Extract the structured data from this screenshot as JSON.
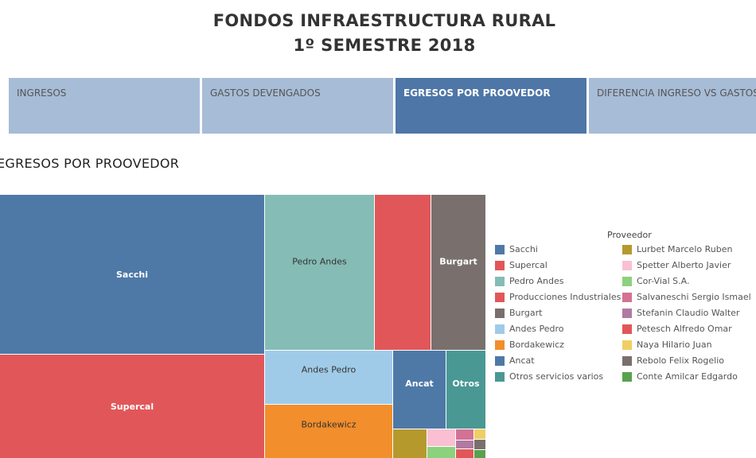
{
  "header": {
    "title_line1": "FONDOS INFRAESTRUCTURA RURAL",
    "title_line2": "1º SEMESTRE 2018"
  },
  "tabs": [
    {
      "label": "INGRESOS",
      "active": false
    },
    {
      "label": "GASTOS DEVENGADOS",
      "active": false
    },
    {
      "label": "EGRESOS POR PROOVEDOR",
      "active": true
    },
    {
      "label": "DIFERENCIA INGRESO VS GASTOS",
      "active": false
    }
  ],
  "section_title": "EGRESOS POR  PROOVEDOR",
  "chart_data": {
    "type": "treemap",
    "legend_title": "Proveedor",
    "legend_placement": "right",
    "items": [
      {
        "name": "Sacchi",
        "value": 100,
        "color": "#4e79a7"
      },
      {
        "name": "Supercal",
        "value": 66,
        "color": "#e15759"
      },
      {
        "name": "Pedro Andes",
        "value": 38,
        "color": "#86bcb6"
      },
      {
        "name": "Producciones Industriales",
        "value": 18,
        "color": "#e15759"
      },
      {
        "name": "Burgart",
        "value": 18,
        "color": "#79706e"
      },
      {
        "name": "Andes Pedro",
        "value": 14,
        "color": "#a0cbe8"
      },
      {
        "name": "Bordakewicz",
        "value": 14,
        "color": "#f28e2b"
      },
      {
        "name": "Ancat",
        "value": 10,
        "color": "#4e79a7"
      },
      {
        "name": "Otros servicios varios",
        "value": 8,
        "color": "#499894"
      },
      {
        "name": "Lurbet Marcelo Ruben",
        "value": 2.5,
        "color": "#b6992d"
      },
      {
        "name": "Spetter Alberto Javier",
        "value": 2.0,
        "color": "#fabfd2"
      },
      {
        "name": "Cor-Vial S.A.",
        "value": 1.2,
        "color": "#8cd17d"
      },
      {
        "name": "Salvaneschi Sergio Ismael",
        "value": 0.9,
        "color": "#d37295"
      },
      {
        "name": "Stefanin Claudio Walter",
        "value": 0.8,
        "color": "#b07aa1"
      },
      {
        "name": "Petesch Alfredo Omar",
        "value": 0.7,
        "color": "#e15759"
      },
      {
        "name": "Naya Hilario Juan",
        "value": 0.6,
        "color": "#f1ce63"
      },
      {
        "name": "Rebolo Felix Rogelio",
        "value": 0.5,
        "color": "#79706e"
      },
      {
        "name": "Conte Amilcar Edgardo",
        "value": 0.3,
        "color": "#59a14f"
      }
    ]
  }
}
